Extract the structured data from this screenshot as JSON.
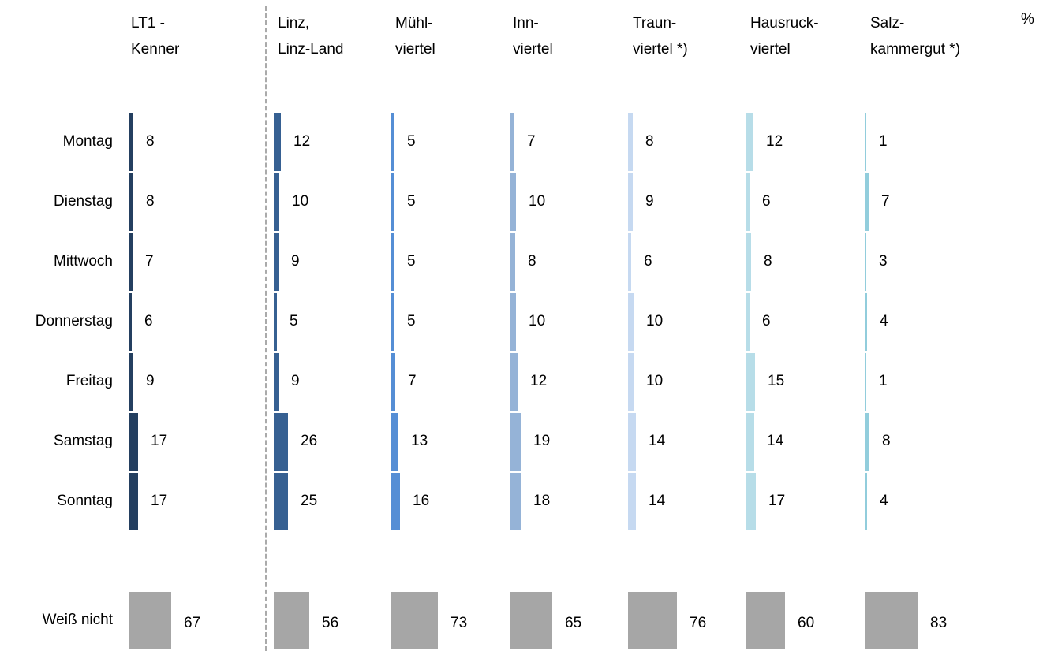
{
  "chart_data": {
    "type": "bar",
    "orientation": "horizontal",
    "unit_label": "%",
    "categories": [
      "Montag",
      "Dienstag",
      "Mittwoch",
      "Donnerstag",
      "Freitag",
      "Samstag",
      "Sonntag"
    ],
    "dontknow_label": "Weiß nicht",
    "series": [
      {
        "name": "LT1 - Kenner",
        "header": [
          "LT1 -",
          "Kenner"
        ],
        "color": "#243f60",
        "values": [
          8,
          8,
          7,
          6,
          9,
          17,
          17
        ],
        "dontknow": 67
      },
      {
        "name": "Linz, Linz-Land",
        "header": [
          "Linz,",
          "Linz-Land"
        ],
        "color": "#366092",
        "values": [
          12,
          10,
          9,
          5,
          9,
          26,
          25
        ],
        "dontknow": 56
      },
      {
        "name": "Mühlviertel",
        "header": [
          "Mühl-",
          "viertel"
        ],
        "color": "#558ed5",
        "values": [
          5,
          5,
          5,
          5,
          7,
          13,
          16
        ],
        "dontknow": 73
      },
      {
        "name": "Innviertel",
        "header": [
          "Inn-",
          "viertel"
        ],
        "color": "#95b3d7",
        "values": [
          7,
          10,
          8,
          10,
          12,
          19,
          18
        ],
        "dontknow": 65
      },
      {
        "name": "Traunviertel *)",
        "header": [
          "Traun-",
          "viertel *)"
        ],
        "color": "#c6d9f1",
        "values": [
          8,
          9,
          6,
          10,
          10,
          14,
          14
        ],
        "dontknow": 76
      },
      {
        "name": "Hausruckviertel",
        "header": [
          "Hausruck-",
          "viertel"
        ],
        "color": "#b7dde8",
        "values": [
          12,
          6,
          8,
          6,
          15,
          14,
          17
        ],
        "dontknow": 60
      },
      {
        "name": "Salzkammergut *)",
        "header": [
          "Salz-",
          "kammergut *)"
        ],
        "color": "#92cddc",
        "values": [
          1,
          7,
          3,
          4,
          1,
          8,
          4
        ],
        "dontknow": 83
      }
    ],
    "dontknow_color": "#a6a6a6"
  }
}
